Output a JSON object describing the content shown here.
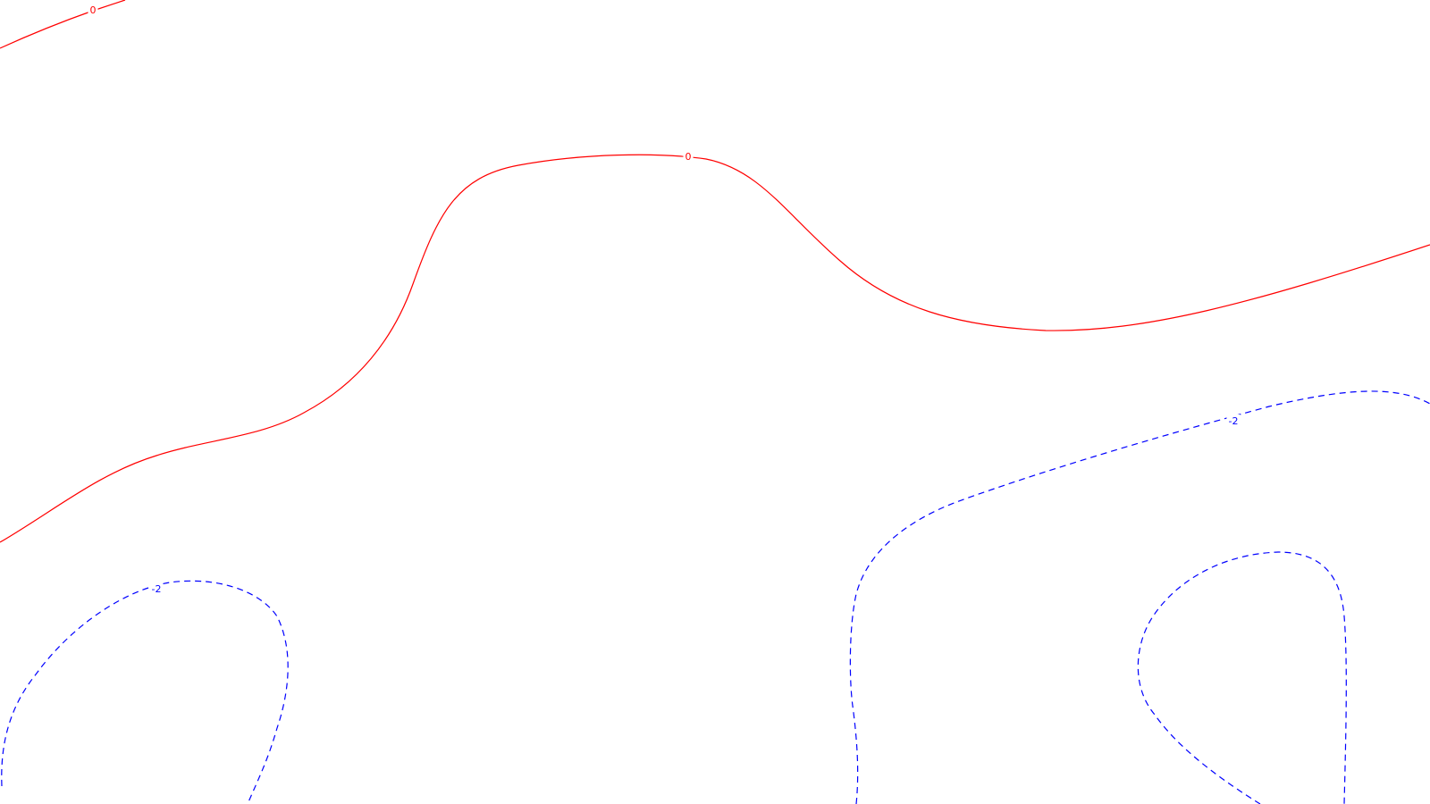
{
  "chart_data": {
    "type": "contour",
    "title": "",
    "xlabel": "",
    "ylabel": "",
    "grid": false,
    "legend": "none",
    "levels": [
      {
        "value": 0,
        "label": "0",
        "color": "#ff0000",
        "style": "solid"
      },
      {
        "value": -2,
        "label": "-2",
        "color": "#0000ff",
        "style": "dashed"
      }
    ]
  }
}
